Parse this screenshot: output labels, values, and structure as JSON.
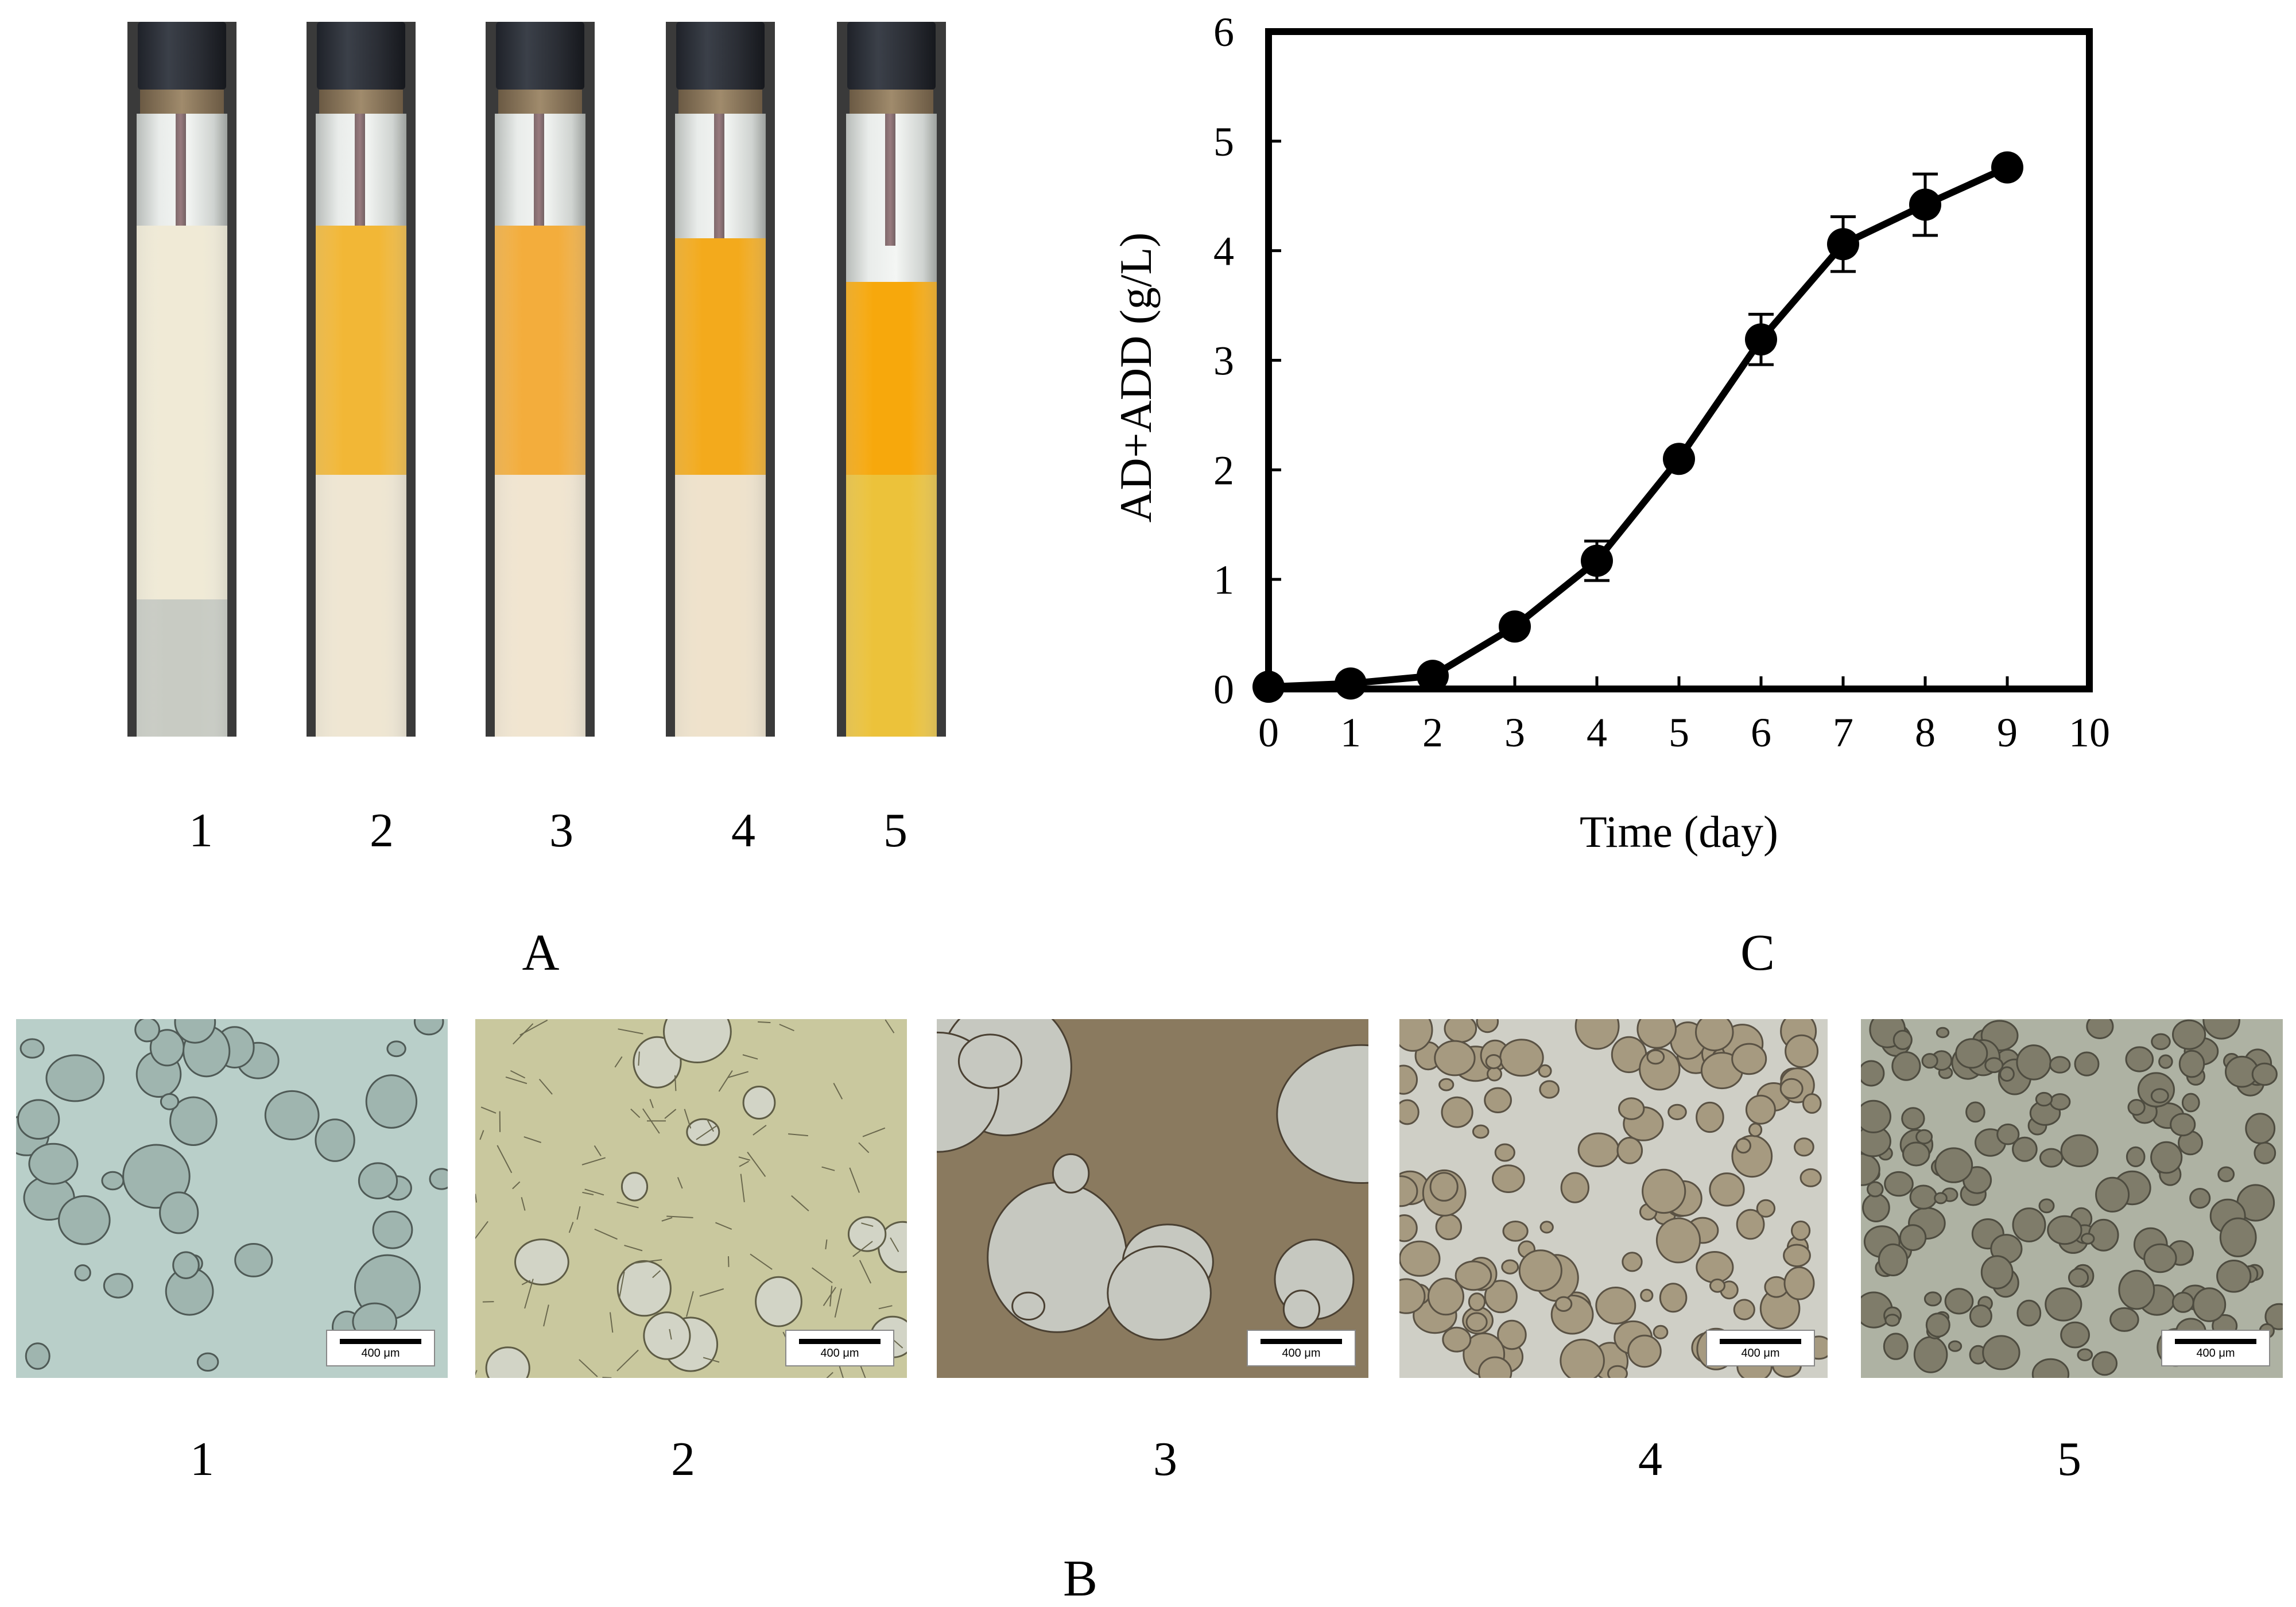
{
  "panel_a": {
    "label": "A",
    "tubes": [
      {
        "label": "1",
        "top_color": "#f0ead6",
        "bottom_color": "#c8cbc3",
        "split": 0.78,
        "top_start": 0.3
      },
      {
        "label": "2",
        "top_color": "#f2b736",
        "bottom_color": "#efe6d2",
        "split": 0.58,
        "top_start": 0.3
      },
      {
        "label": "3",
        "top_color": "#f3ad3c",
        "bottom_color": "#f1e5d0",
        "split": 0.58,
        "top_start": 0.3
      },
      {
        "label": "4",
        "top_color": "#f3aa1c",
        "bottom_color": "#efe2cb",
        "split": 0.58,
        "top_start": 0.32
      },
      {
        "label": "5",
        "top_color": "#f7a80c",
        "bottom_color": "#ecc23a",
        "split": 0.58,
        "top_start": 0.39
      }
    ]
  },
  "panel_b": {
    "label": "B",
    "images": [
      {
        "label": "1",
        "scale_text": "400 μm",
        "bg": "#b9cfc9",
        "particle": "#9fb5af",
        "edge": "#4f5a56"
      },
      {
        "label": "2",
        "scale_text": "400 μm",
        "bg": "#c9c89e",
        "particle": "#d2d4c6",
        "edge": "#5e5c45"
      },
      {
        "label": "3",
        "scale_text": "400 μm",
        "bg": "#8a7a5f",
        "particle": "#c6c8c0",
        "edge": "#4a4032"
      },
      {
        "label": "4",
        "scale_text": "400 μm",
        "bg": "#cfcfc6",
        "particle": "#a69a80",
        "edge": "#5a5244"
      },
      {
        "label": "5",
        "scale_text": "400 μm",
        "bg": "#aeb2a3",
        "particle": "#7f7c6a",
        "edge": "#4e4c40"
      }
    ]
  },
  "panel_c": {
    "label": "C"
  },
  "chart_data": {
    "type": "line",
    "title": "",
    "xlabel": "Time (day)",
    "ylabel": "AD+ADD (g/L)",
    "xlim": [
      0,
      10
    ],
    "ylim": [
      0,
      6
    ],
    "xticks": [
      "0",
      "1",
      "2",
      "3",
      "4",
      "5",
      "6",
      "7",
      "8",
      "9",
      "10"
    ],
    "yticks": [
      "0",
      "1",
      "2",
      "3",
      "4",
      "5",
      "6"
    ],
    "grid": false,
    "legend": "none",
    "series": [
      {
        "x": [
          0,
          1,
          2,
          3,
          4,
          5,
          6,
          7,
          8,
          9
        ],
        "y": [
          0.02,
          0.05,
          0.12,
          0.57,
          1.17,
          2.1,
          3.19,
          4.06,
          4.42,
          4.76
        ],
        "error": [
          0.0,
          0.0,
          0.0,
          0.05,
          0.18,
          0.08,
          0.23,
          0.25,
          0.28,
          0.05
        ],
        "marker": "circle",
        "color": "#000000"
      }
    ]
  }
}
